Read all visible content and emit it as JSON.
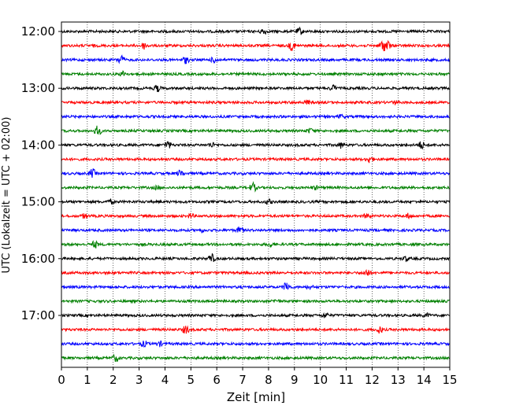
{
  "chart_data": {
    "type": "line",
    "title": "",
    "xlabel": "Zeit  [min]",
    "ylabel": "UTC (Lokalzeit = UTC + 02:00)",
    "xlim": [
      0,
      15
    ],
    "x_ticks": [
      "0",
      "1",
      "2",
      "3",
      "4",
      "5",
      "6",
      "7",
      "8",
      "9",
      "10",
      "11",
      "12",
      "13",
      "14",
      "15"
    ],
    "y_tick_labels": [
      "12:00",
      "13:00",
      "14:00",
      "15:00",
      "16:00",
      "17:00"
    ],
    "traces_per_hour": 4,
    "trace_minutes": 15,
    "trace_start": "12:00",
    "trace_colors": [
      "#000000",
      "#ff0000",
      "#0000ff",
      "#008000"
    ],
    "vertical_grid": true,
    "grid_style": "dotted",
    "series": [
      {
        "label": "12:00",
        "color": "#000000",
        "events": [
          [
            7.8,
            0.5
          ],
          [
            9.2,
            0.6
          ]
        ]
      },
      {
        "label": "12:15",
        "color": "#ff0000",
        "events": [
          [
            3.2,
            0.6
          ],
          [
            8.9,
            0.8
          ],
          [
            12.4,
            1.0
          ],
          [
            12.6,
            0.9
          ]
        ]
      },
      {
        "label": "12:30",
        "color": "#0000ff",
        "events": [
          [
            2.3,
            0.9
          ],
          [
            4.8,
            0.6
          ],
          [
            5.9,
            0.5
          ]
        ]
      },
      {
        "label": "12:45",
        "color": "#008000",
        "events": [
          [
            2.4,
            0.5
          ]
        ]
      },
      {
        "label": "13:00",
        "color": "#000000",
        "events": [
          [
            3.7,
            0.6
          ],
          [
            10.5,
            0.5
          ]
        ]
      },
      {
        "label": "13:15",
        "color": "#ff0000",
        "events": [
          [
            9.5,
            0.3
          ],
          [
            12.9,
            0.3
          ]
        ]
      },
      {
        "label": "13:30",
        "color": "#0000ff",
        "events": [
          [
            10.8,
            0.3
          ]
        ]
      },
      {
        "label": "13:45",
        "color": "#008000",
        "events": [
          [
            1.4,
            0.9
          ],
          [
            9.6,
            0.4
          ]
        ]
      },
      {
        "label": "14:00",
        "color": "#000000",
        "events": [
          [
            4.1,
            0.7
          ],
          [
            5.8,
            0.4
          ],
          [
            10.8,
            0.5
          ],
          [
            13.9,
            0.7
          ]
        ]
      },
      {
        "label": "14:15",
        "color": "#ff0000",
        "events": [
          [
            11.9,
            0.6
          ]
        ]
      },
      {
        "label": "14:30",
        "color": "#0000ff",
        "events": [
          [
            1.2,
            0.8
          ],
          [
            4.6,
            0.6
          ]
        ]
      },
      {
        "label": "14:45",
        "color": "#008000",
        "events": [
          [
            3.7,
            0.3
          ],
          [
            7.4,
            0.8
          ],
          [
            9.8,
            0.3
          ]
        ]
      },
      {
        "label": "15:00",
        "color": "#000000",
        "events": [
          [
            1.9,
            0.3
          ],
          [
            8.0,
            0.4
          ]
        ]
      },
      {
        "label": "15:15",
        "color": "#ff0000",
        "events": [
          [
            0.9,
            0.4
          ],
          [
            5.0,
            0.4
          ],
          [
            11.8,
            0.4
          ],
          [
            13.4,
            0.4
          ]
        ]
      },
      {
        "label": "15:30",
        "color": "#0000ff",
        "events": [
          [
            6.9,
            0.6
          ],
          [
            5.4,
            0.3
          ]
        ]
      },
      {
        "label": "15:45",
        "color": "#008000",
        "events": [
          [
            1.3,
            0.6
          ],
          [
            8.1,
            0.4
          ]
        ]
      },
      {
        "label": "16:00",
        "color": "#000000",
        "events": [
          [
            5.8,
            0.8
          ],
          [
            13.3,
            0.4
          ]
        ]
      },
      {
        "label": "16:15",
        "color": "#ff0000",
        "events": [
          [
            11.8,
            0.7
          ]
        ]
      },
      {
        "label": "16:30",
        "color": "#0000ff",
        "events": [
          [
            8.7,
            1.0
          ],
          [
            9.6,
            0.3
          ]
        ]
      },
      {
        "label": "16:45",
        "color": "#008000",
        "events": [
          [
            8.3,
            0.3
          ]
        ]
      },
      {
        "label": "17:00",
        "color": "#000000",
        "events": [
          [
            10.2,
            0.5
          ],
          [
            14.1,
            0.3
          ]
        ]
      },
      {
        "label": "17:15",
        "color": "#ff0000",
        "events": [
          [
            4.8,
            0.7
          ],
          [
            12.3,
            0.6
          ]
        ]
      },
      {
        "label": "17:30",
        "color": "#0000ff",
        "events": [
          [
            3.2,
            0.5
          ],
          [
            3.8,
            0.4
          ]
        ]
      },
      {
        "label": "17:45",
        "color": "#008000",
        "events": [
          [
            2.1,
            0.6
          ]
        ]
      }
    ]
  }
}
